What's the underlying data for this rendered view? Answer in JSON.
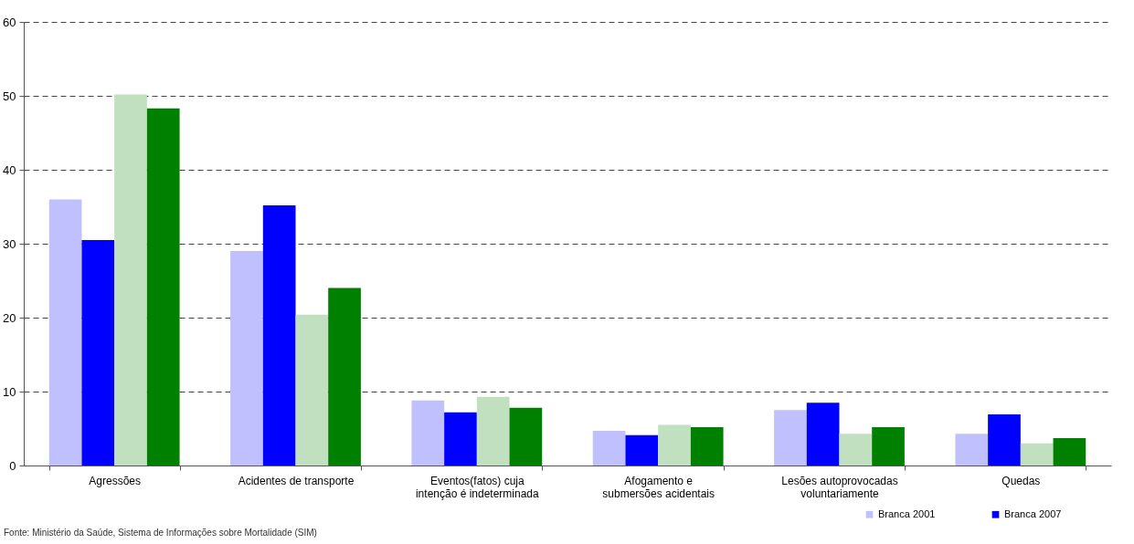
{
  "chart_data": {
    "type": "bar",
    "categories": [
      "Agressões",
      "Acidentes de transporte",
      "Eventos(fatos) cuja intenção é indeterminada",
      "Afogamento e submersões acidentais",
      "Lesões autoprovocadas voluntariamente",
      "Quedas"
    ],
    "series": [
      {
        "name": "Branca 2001",
        "color": "#c0c0ff",
        "values": [
          36,
          29,
          8.8,
          4.7,
          7.5,
          4.3
        ]
      },
      {
        "name": "Branca 2007",
        "color": "#0000ff",
        "values": [
          30.5,
          35.2,
          7.2,
          4.1,
          8.5,
          6.9
        ]
      },
      {
        "color": "#c0e0c0",
        "values": [
          50.2,
          20.4,
          9.3,
          5.5,
          4.3,
          3.0
        ]
      },
      {
        "color": "#008000",
        "values": [
          48.3,
          24.0,
          7.8,
          5.2,
          5.2,
          3.7
        ]
      }
    ],
    "ylim": [
      0,
      60
    ],
    "yticks": [
      0,
      10,
      20,
      30,
      40,
      50,
      60
    ],
    "grid": "y",
    "legend": "bottom right",
    "annotations": [
      "Fonte: Ministério da Saúde, Sistema de Informações sobre Mortalidade (SIM)"
    ]
  }
}
